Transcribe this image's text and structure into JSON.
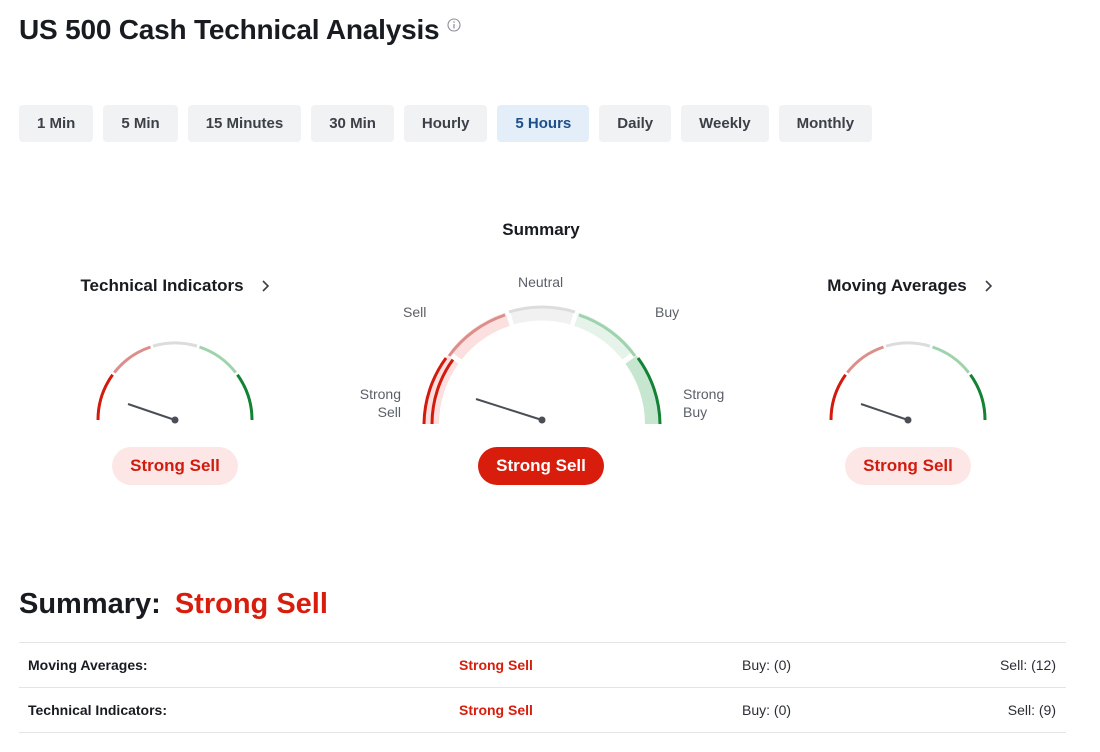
{
  "page": {
    "title": "US 500 Cash Technical Analysis",
    "info_icon": "info-circle-icon"
  },
  "tabs": [
    {
      "label": "1 Min",
      "active": false
    },
    {
      "label": "5 Min",
      "active": false
    },
    {
      "label": "15 Minutes",
      "active": false
    },
    {
      "label": "30 Min",
      "active": false
    },
    {
      "label": "Hourly",
      "active": false
    },
    {
      "label": "5 Hours",
      "active": true
    },
    {
      "label": "Daily",
      "active": false
    },
    {
      "label": "Weekly",
      "active": false
    },
    {
      "label": "Monthly",
      "active": false
    }
  ],
  "gauges": {
    "technical_indicators": {
      "title": "Technical Indicators",
      "result": "Strong Sell"
    },
    "summary": {
      "title": "Summary",
      "result": "Strong Sell",
      "labels": {
        "strong_sell": "Strong\nSell",
        "sell": "Sell",
        "neutral": "Neutral",
        "buy": "Buy",
        "strong_buy": "Strong\nBuy"
      }
    },
    "moving_averages": {
      "title": "Moving Averages",
      "result": "Strong Sell"
    }
  },
  "summary": {
    "label": "Summary:",
    "value": "Strong Sell",
    "rows": [
      {
        "name": "Moving Averages:",
        "signal": "Strong Sell",
        "buy": "Buy: (0)",
        "sell": "Sell: (12)"
      },
      {
        "name": "Technical Indicators:",
        "signal": "Strong Sell",
        "buy": "Buy: (0)",
        "sell": "Sell: (9)"
      }
    ]
  },
  "colors": {
    "strong_sell": "#d21a0d",
    "sell": "#dc8f8a",
    "neutral": "#dcdcdc",
    "buy": "#9fd3ae",
    "strong_buy": "#138234",
    "active_tab_bg": "#e4eef9",
    "active_tab_text": "#1d4f8a"
  }
}
